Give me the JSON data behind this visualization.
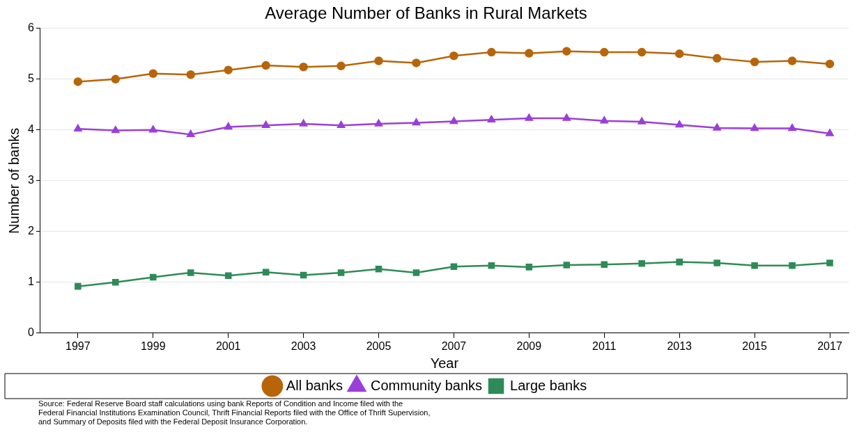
{
  "chart_data": {
    "type": "line",
    "title": "Average Number of Banks in Rural Markets",
    "xlabel": "Year",
    "ylabel": "Number of banks",
    "x": [
      1997,
      1998,
      1999,
      2000,
      2001,
      2002,
      2003,
      2004,
      2005,
      2006,
      2007,
      2008,
      2009,
      2010,
      2011,
      2012,
      2013,
      2014,
      2015,
      2016,
      2017
    ],
    "series": [
      {
        "name": "All banks",
        "color": "#b8650a",
        "marker": "circle",
        "values": [
          4.95,
          5.0,
          5.11,
          5.09,
          5.18,
          5.27,
          5.24,
          5.26,
          5.36,
          5.32,
          5.46,
          5.53,
          5.51,
          5.55,
          5.53,
          5.53,
          5.5,
          5.41,
          5.34,
          5.36,
          5.3
        ]
      },
      {
        "name": "Community banks",
        "color": "#9a3fd9",
        "marker": "triangle",
        "values": [
          4.02,
          3.99,
          4.0,
          3.91,
          4.06,
          4.09,
          4.12,
          4.09,
          4.12,
          4.14,
          4.17,
          4.2,
          4.23,
          4.23,
          4.18,
          4.16,
          4.1,
          4.04,
          4.03,
          4.03,
          3.93
        ]
      },
      {
        "name": "Large banks",
        "color": "#2e8b57",
        "marker": "square",
        "values": [
          0.92,
          1.0,
          1.1,
          1.19,
          1.13,
          1.2,
          1.14,
          1.19,
          1.26,
          1.19,
          1.31,
          1.33,
          1.3,
          1.34,
          1.35,
          1.37,
          1.4,
          1.38,
          1.33,
          1.33,
          1.38
        ]
      }
    ],
    "xlim": [
      1996,
      2017.5
    ],
    "xticks": [
      1997,
      1999,
      2001,
      2003,
      2005,
      2007,
      2009,
      2011,
      2013,
      2015,
      2017
    ],
    "ylim": [
      0,
      6
    ],
    "yticks": [
      0,
      1,
      2,
      3,
      4,
      5,
      6
    ],
    "grid": "y",
    "legend": "bottom",
    "line_style": "solid",
    "annotations": [
      "Source: Federal Reserve Board staff calculations using bank Reports of Condition and Income filed with the\nFederal Financial Institutions Examination Council, Thrift Financial Reports filed with the Office of Thrift Supervision,\nand Summary of Deposits filed with the Federal Deposit Insurance Corporation."
    ]
  }
}
